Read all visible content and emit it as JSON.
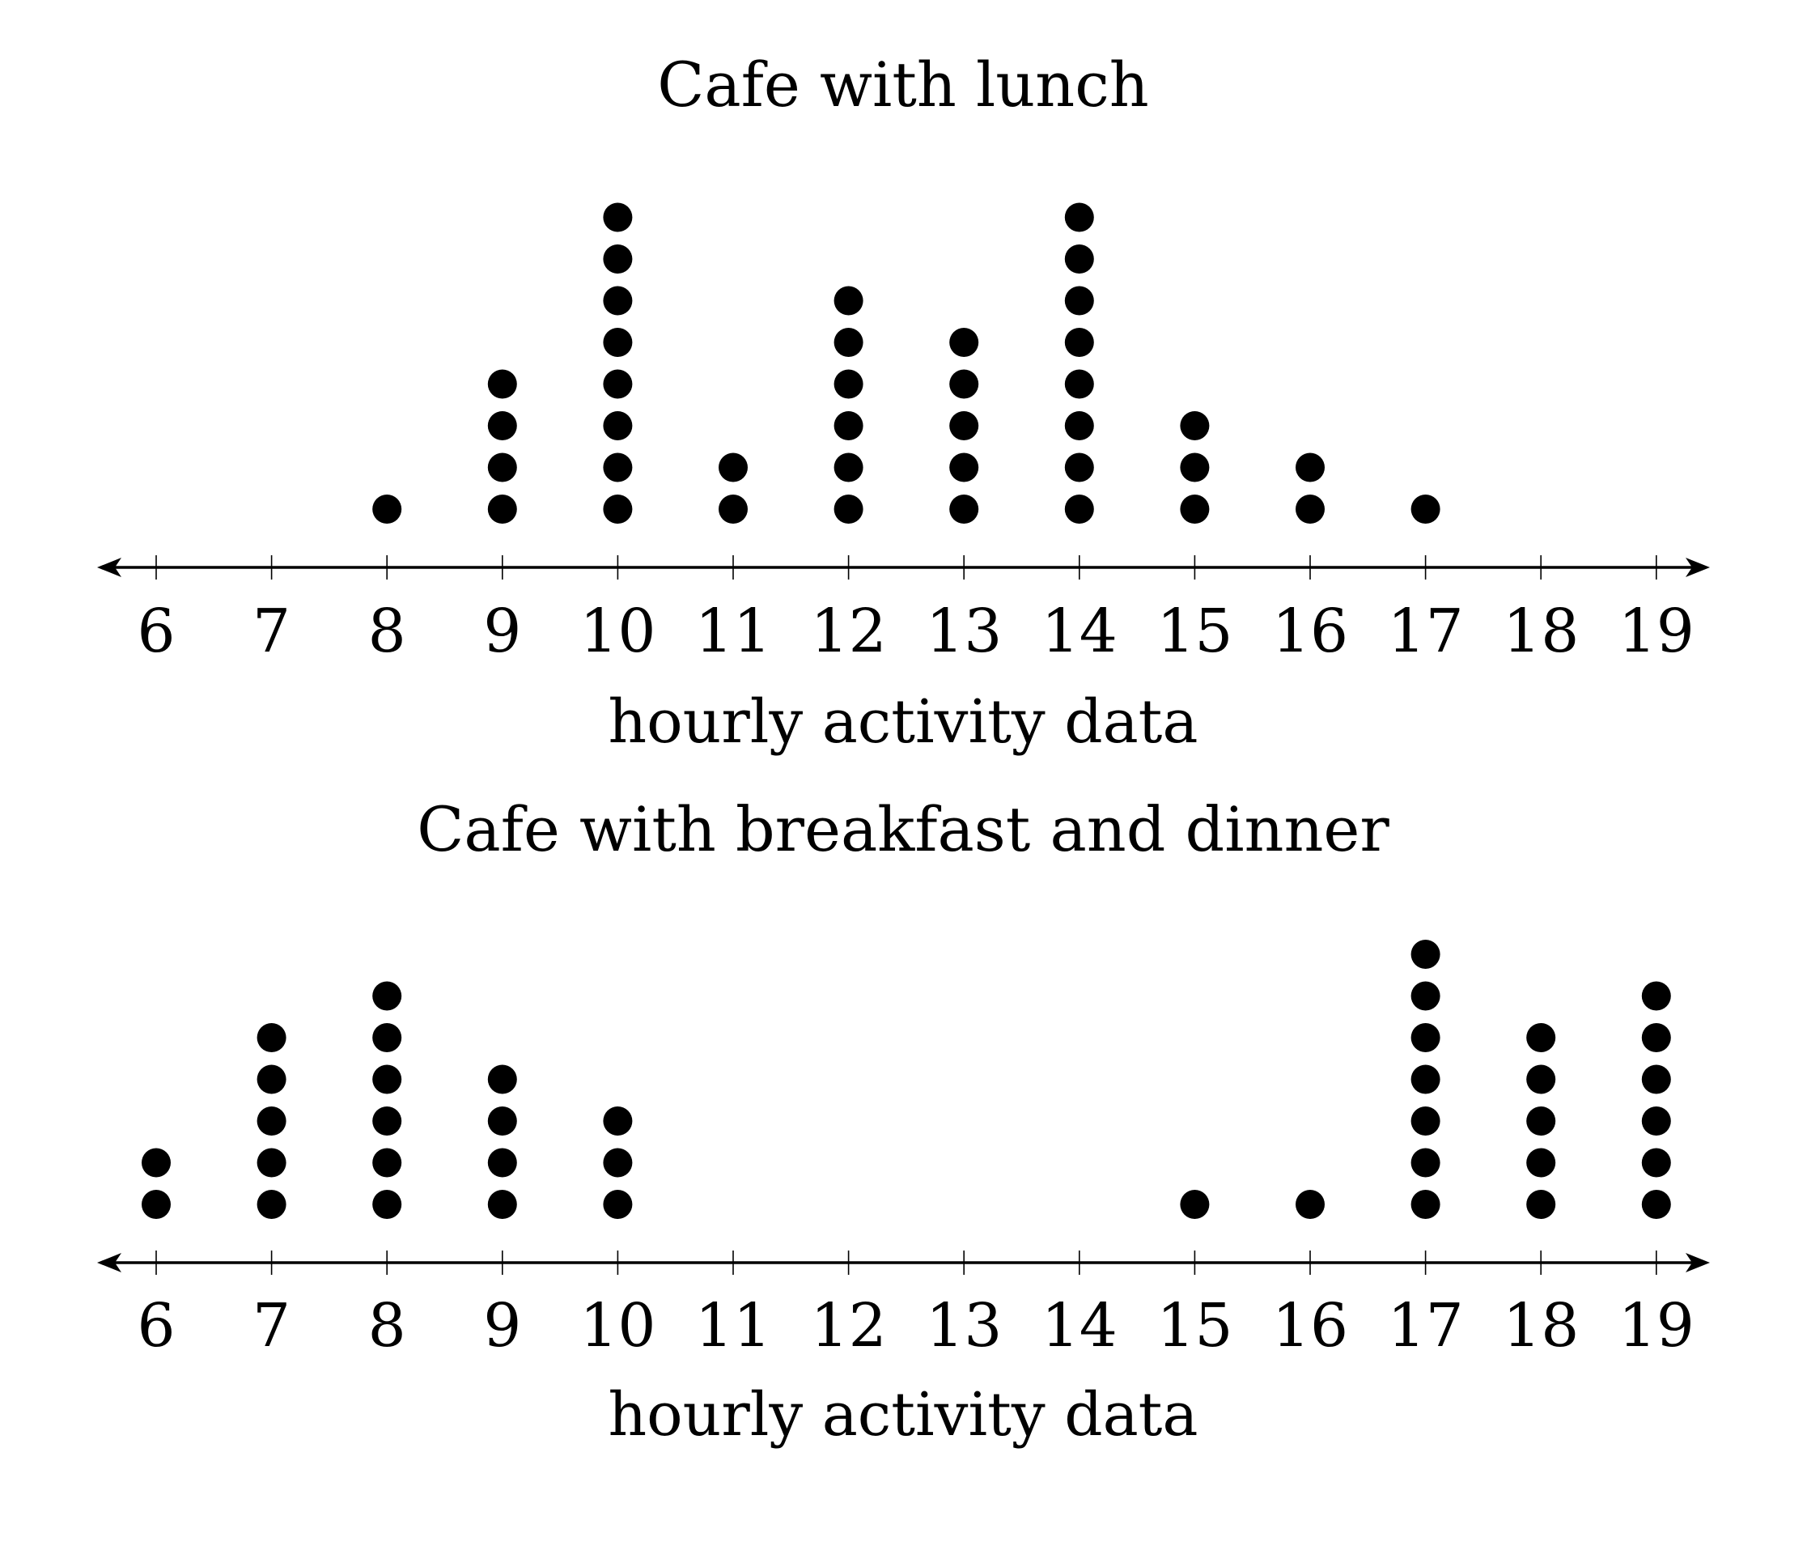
{
  "chart_data": [
    {
      "type": "dot_plot",
      "title": "Cafe with lunch",
      "xlabel": "hourly activity data",
      "ticks": [
        6,
        7,
        8,
        9,
        10,
        11,
        12,
        13,
        14,
        15,
        16,
        17,
        18,
        19
      ],
      "xlim": [
        6,
        19
      ],
      "points": [
        {
          "x": 8,
          "count": 1
        },
        {
          "x": 9,
          "count": 4
        },
        {
          "x": 10,
          "count": 8
        },
        {
          "x": 11,
          "count": 2
        },
        {
          "x": 12,
          "count": 6
        },
        {
          "x": 13,
          "count": 5
        },
        {
          "x": 14,
          "count": 8
        },
        {
          "x": 15,
          "count": 3
        },
        {
          "x": 16,
          "count": 2
        },
        {
          "x": 17,
          "count": 1
        }
      ]
    },
    {
      "type": "dot_plot",
      "title": "Cafe with breakfast and dinner",
      "xlabel": "hourly activity data",
      "ticks": [
        6,
        7,
        8,
        9,
        10,
        11,
        12,
        13,
        14,
        15,
        16,
        17,
        18,
        19
      ],
      "xlim": [
        6,
        19
      ],
      "points": [
        {
          "x": 6,
          "count": 2
        },
        {
          "x": 7,
          "count": 5
        },
        {
          "x": 8,
          "count": 6
        },
        {
          "x": 9,
          "count": 4
        },
        {
          "x": 10,
          "count": 3
        },
        {
          "x": 15,
          "count": 1
        },
        {
          "x": 16,
          "count": 1
        },
        {
          "x": 17,
          "count": 7
        },
        {
          "x": 18,
          "count": 5
        },
        {
          "x": 19,
          "count": 6
        }
      ]
    }
  ]
}
